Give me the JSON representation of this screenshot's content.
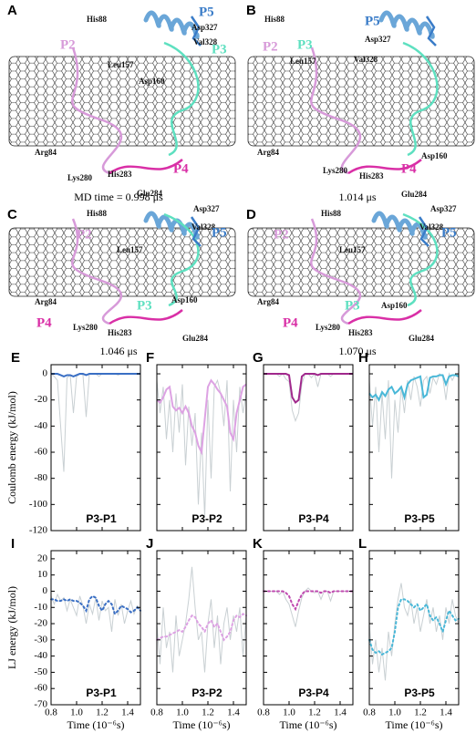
{
  "panels": [
    {
      "letter": "A",
      "labels": [
        "His88",
        "P2",
        "Leu157",
        "P5",
        "Asp327",
        "Val328",
        "P3",
        "Asp160",
        "Arg84",
        "Lys280",
        "His283",
        "P4",
        "Glu284"
      ],
      "caption": "MD time = 0.998 μs"
    },
    {
      "letter": "B",
      "labels": [
        "His88",
        "P5",
        "Asp327",
        "P2",
        "P3",
        "Leu157",
        "Val328",
        "Arg84",
        "Asp160",
        "P4",
        "Lys280",
        "His283",
        "Glu284"
      ],
      "caption": "1.014 μs"
    },
    {
      "letter": "C",
      "labels": [
        "His88",
        "Asp327",
        "P2",
        "Val328",
        "P5",
        "Leu157",
        "Arg84",
        "Asp160",
        "P3",
        "P4",
        "Lys280",
        "His283",
        "Glu284"
      ],
      "caption": "1.046 μs"
    },
    {
      "letter": "D",
      "labels": [
        "His88",
        "Asp327",
        "P2",
        "Val328",
        "P5",
        "Leu157",
        "Arg84",
        "P3",
        "Asp160",
        "P4",
        "Lys280",
        "His283",
        "Glu284"
      ],
      "caption": "1.070 μs"
    }
  ],
  "chart_data": [
    {
      "type": "line",
      "panel": "E",
      "annotation": "P3-P1",
      "ylabel": "Coulomb energy (kJ/mol)",
      "x": [
        0.8,
        0.825,
        0.85,
        0.875,
        0.9,
        0.925,
        0.95,
        0.975,
        1,
        1.025,
        1.05,
        1.075,
        1.1,
        1.125,
        1.15,
        1.175,
        1.2,
        1.225,
        1.25,
        1.275,
        1.3,
        1.325,
        1.35,
        1.375,
        1.4,
        1.425,
        1.45,
        1.475,
        1.5
      ],
      "xlim": [
        0.8,
        1.5
      ],
      "xticks": [
        0.8,
        {
          "value": 1,
          "label": "1.0"
        },
        1.2,
        1.4
      ],
      "xtick_labels": false,
      "ylim": [
        -120,
        7
      ],
      "yticks": [
        0,
        -20,
        -40,
        -60,
        -80,
        -100,
        -120
      ],
      "ytick_labels": true,
      "series": [
        {
          "color": "#c9d0d3",
          "values": [
            0,
            -2,
            -5,
            -40,
            -75,
            -3,
            -1,
            -30,
            -2,
            0,
            -1,
            -33,
            0,
            0,
            0,
            -2,
            0,
            0,
            0,
            0,
            0,
            -1,
            0,
            0,
            0,
            0,
            0,
            0,
            0
          ]
        },
        {
          "color": "#3a6fc4",
          "line_style": "solid",
          "values": [
            0,
            0,
            0,
            -1,
            -2,
            -1,
            -1,
            -2,
            -1,
            0,
            0,
            -1,
            0,
            0,
            0,
            0,
            0,
            0,
            0,
            0,
            0,
            0,
            0,
            0,
            0,
            0,
            0,
            0,
            0
          ]
        }
      ]
    },
    {
      "type": "line",
      "panel": "F",
      "annotation": "P3-P2",
      "x": [
        0.8,
        0.825,
        0.85,
        0.875,
        0.9,
        0.925,
        0.95,
        0.975,
        1,
        1.025,
        1.05,
        1.075,
        1.1,
        1.125,
        1.15,
        1.175,
        1.2,
        1.225,
        1.25,
        1.275,
        1.3,
        1.325,
        1.35,
        1.375,
        1.4,
        1.425,
        1.45,
        1.475,
        1.5
      ],
      "xlim": [
        0.8,
        1.5
      ],
      "xticks": [
        0.8,
        {
          "value": 1,
          "label": "1.0"
        },
        1.2,
        1.4
      ],
      "xtick_labels": false,
      "ylim": [
        -120,
        7
      ],
      "yticks": [
        0,
        -20,
        -40,
        -60,
        -80,
        -100,
        -120
      ],
      "ytick_labels": false,
      "series": [
        {
          "color": "#c9d0d3",
          "values": [
            -5,
            -30,
            -10,
            -50,
            -20,
            -60,
            -15,
            -45,
            -8,
            -70,
            -25,
            -55,
            -30,
            -100,
            -45,
            -110,
            -20,
            -80,
            -10,
            -5,
            -15,
            -40,
            -5,
            -90,
            -20,
            -60,
            -10,
            -30,
            -15
          ]
        },
        {
          "color": "#dda2e3",
          "line_style": "solid",
          "values": [
            -20,
            -22,
            -18,
            -12,
            -10,
            -25,
            -28,
            -26,
            -30,
            -25,
            -30,
            -40,
            -45,
            -55,
            -60,
            -35,
            -10,
            -5,
            -8,
            -12,
            -15,
            -20,
            -25,
            -45,
            -50,
            -30,
            -20,
            -10,
            -8
          ]
        }
      ]
    },
    {
      "type": "line",
      "panel": "G",
      "annotation": "P3-P4",
      "x": [
        0.8,
        0.825,
        0.85,
        0.875,
        0.9,
        0.925,
        0.95,
        0.975,
        1,
        1.025,
        1.05,
        1.075,
        1.1,
        1.125,
        1.15,
        1.175,
        1.2,
        1.225,
        1.25,
        1.275,
        1.3,
        1.325,
        1.35,
        1.375,
        1.4,
        1.425,
        1.45,
        1.475,
        1.5
      ],
      "xlim": [
        0.8,
        1.5
      ],
      "xticks": [
        0.8,
        {
          "value": 1,
          "label": "1.0"
        },
        1.2,
        1.4
      ],
      "xtick_labels": false,
      "ylim": [
        -120,
        7
      ],
      "yticks": [
        0,
        -20,
        -40,
        -60,
        -80,
        -100,
        -120
      ],
      "ytick_labels": false,
      "series": [
        {
          "color": "#c9d0d3",
          "values": [
            0,
            0,
            0,
            0,
            0,
            -2,
            0,
            -4,
            -6,
            -28,
            -36,
            -30,
            -8,
            0,
            0,
            -3,
            0,
            -10,
            0,
            0,
            0,
            -2,
            0,
            0,
            0,
            0,
            0,
            0,
            0
          ]
        },
        {
          "color": "#a0288c",
          "line_style": "solid",
          "values": [
            0,
            0,
            0,
            0,
            0,
            0,
            0,
            0,
            -1,
            -18,
            -22,
            -20,
            -2,
            0,
            0,
            0,
            0,
            -1,
            0,
            0,
            0,
            0,
            0,
            0,
            0,
            0,
            0,
            0,
            0
          ]
        }
      ]
    },
    {
      "type": "line",
      "panel": "H",
      "annotation": "P3-P5",
      "x": [
        0.8,
        0.825,
        0.85,
        0.875,
        0.9,
        0.925,
        0.95,
        0.975,
        1,
        1.025,
        1.05,
        1.075,
        1.1,
        1.125,
        1.15,
        1.175,
        1.2,
        1.225,
        1.25,
        1.275,
        1.3,
        1.325,
        1.35,
        1.375,
        1.4,
        1.425,
        1.45,
        1.475,
        1.5
      ],
      "xlim": [
        0.8,
        1.5
      ],
      "xticks": [
        0.8,
        {
          "value": 1,
          "label": "1.0"
        },
        1.2,
        1.4
      ],
      "xtick_labels": false,
      "ylim": [
        -120,
        7
      ],
      "yticks": [
        0,
        -20,
        -40,
        -60,
        -80,
        -100,
        -120
      ],
      "ytick_labels": false,
      "series": [
        {
          "color": "#c9d0d3",
          "values": [
            -5,
            -40,
            -10,
            -60,
            -15,
            -50,
            -5,
            -80,
            -20,
            -45,
            -10,
            -30,
            -5,
            -20,
            -2,
            -10,
            -25,
            -5,
            -2,
            -15,
            -3,
            -8,
            0,
            -2,
            -20,
            0,
            -5,
            0,
            -1
          ]
        },
        {
          "color": "#4ab8d8",
          "line_style": "solid",
          "values": [
            -15,
            -18,
            -16,
            -20,
            -14,
            -17,
            -12,
            -10,
            -15,
            -13,
            -10,
            -18,
            -8,
            -5,
            -4,
            -3,
            -2,
            -18,
            -16,
            -3,
            -2,
            -2,
            -1,
            -1,
            -8,
            -2,
            -1,
            -1,
            -2
          ]
        }
      ]
    },
    {
      "type": "line",
      "panel": "I",
      "annotation": "P3-P1",
      "ylabel": "LJ energy (kJ/mol)",
      "xlabel": "Time (10⁻⁶s)",
      "x": [
        0.8,
        0.825,
        0.85,
        0.875,
        0.9,
        0.925,
        0.95,
        0.975,
        1,
        1.025,
        1.05,
        1.075,
        1.1,
        1.125,
        1.15,
        1.175,
        1.2,
        1.225,
        1.25,
        1.275,
        1.3,
        1.325,
        1.35,
        1.375,
        1.4,
        1.425,
        1.45,
        1.475,
        1.5
      ],
      "xlim": [
        0.8,
        1.5
      ],
      "xticks": [
        0.8,
        {
          "value": 1,
          "label": "1.0"
        },
        1.2,
        1.4
      ],
      "xtick_labels": true,
      "ylim": [
        -70,
        25
      ],
      "yticks": [
        20,
        10,
        0,
        -10,
        -20,
        -30,
        -40,
        -50,
        -60,
        -70
      ],
      "ytick_labels": true,
      "series": [
        {
          "color": "#c9d0d3",
          "values": [
            -3,
            -8,
            -2,
            -6,
            -4,
            -12,
            -5,
            -10,
            -15,
            -3,
            -9,
            -20,
            -8,
            -14,
            -4,
            -18,
            -6,
            -12,
            -10,
            -25,
            -5,
            -15,
            -8,
            -20,
            -12,
            -6,
            -14,
            -9,
            -11
          ]
        },
        {
          "color": "#3a6fc4",
          "line_style": "dotted",
          "values": [
            -5,
            -5,
            -6,
            -6,
            -5,
            -6,
            -5,
            -6,
            -6,
            -7,
            -9,
            -12,
            -5,
            -3,
            -4,
            -9,
            -12,
            -8,
            -6,
            -8,
            -14,
            -12,
            -9,
            -10,
            -11,
            -13,
            -12,
            -10,
            -12
          ]
        }
      ]
    },
    {
      "type": "line",
      "panel": "J",
      "annotation": "P3-P2",
      "xlabel": "Time (10⁻⁶s)",
      "x": [
        0.8,
        0.825,
        0.85,
        0.875,
        0.9,
        0.925,
        0.95,
        0.975,
        1,
        1.025,
        1.05,
        1.075,
        1.1,
        1.125,
        1.15,
        1.175,
        1.2,
        1.225,
        1.25,
        1.275,
        1.3,
        1.325,
        1.35,
        1.375,
        1.4,
        1.425,
        1.45,
        1.475,
        1.5
      ],
      "xlim": [
        0.8,
        1.5
      ],
      "xticks": [
        0.8,
        {
          "value": 1,
          "label": "1.0"
        },
        1.2,
        1.4
      ],
      "xtick_labels": true,
      "ylim": [
        -70,
        25
      ],
      "yticks": [
        20,
        10,
        0,
        -10,
        -20,
        -30,
        -40,
        -50,
        -60,
        -70
      ],
      "ytick_labels": false,
      "series": [
        {
          "color": "#c9d0d3",
          "values": [
            -20,
            -45,
            -10,
            -35,
            -25,
            -50,
            -15,
            -40,
            -30,
            -20,
            -5,
            15,
            -10,
            -30,
            -25,
            -50,
            -20,
            -5,
            -35,
            -15,
            -45,
            -20,
            -10,
            -30,
            -15,
            -25,
            -10,
            -40,
            -15
          ]
        },
        {
          "color": "#dda2e3",
          "line_style": "dotted",
          "values": [
            -30,
            -29,
            -28,
            -28,
            -27,
            -26,
            -25,
            -24,
            -25,
            -22,
            -18,
            -15,
            -16,
            -20,
            -22,
            -25,
            -20,
            -18,
            -22,
            -20,
            -25,
            -30,
            -28,
            -25,
            -18,
            -15,
            -16,
            -14,
            -15
          ]
        }
      ]
    },
    {
      "type": "line",
      "panel": "K",
      "annotation": "P3-P4",
      "xlabel": "Time (10⁻⁶s)",
      "x": [
        0.8,
        0.825,
        0.85,
        0.875,
        0.9,
        0.925,
        0.95,
        0.975,
        1,
        1.025,
        1.05,
        1.075,
        1.1,
        1.125,
        1.15,
        1.175,
        1.2,
        1.225,
        1.25,
        1.275,
        1.3,
        1.325,
        1.35,
        1.375,
        1.4,
        1.425,
        1.45,
        1.475,
        1.5
      ],
      "xlim": [
        0.8,
        1.5
      ],
      "xticks": [
        0.8,
        {
          "value": 1,
          "label": "1.0"
        },
        1.2,
        1.4
      ],
      "xtick_labels": true,
      "ylim": [
        -70,
        25
      ],
      "yticks": [
        20,
        10,
        0,
        -10,
        -20,
        -30,
        -40,
        -50,
        -60,
        -70
      ],
      "ytick_labels": false,
      "series": [
        {
          "color": "#c9d0d3",
          "values": [
            0,
            0,
            0,
            0,
            0,
            -2,
            0,
            -5,
            -8,
            -15,
            -22,
            -12,
            -4,
            0,
            2,
            0,
            -1,
            0,
            -5,
            0,
            0,
            -6,
            0,
            0,
            0,
            0,
            0,
            0,
            0
          ]
        },
        {
          "color": "#c04ab0",
          "line_style": "dotted",
          "values": [
            0,
            0,
            0,
            0,
            0,
            0,
            0,
            -1,
            -3,
            -8,
            -11,
            -6,
            -2,
            0,
            0,
            0,
            0,
            0,
            -1,
            0,
            0,
            -1,
            0,
            0,
            0,
            0,
            0,
            0,
            0
          ]
        }
      ]
    },
    {
      "type": "line",
      "panel": "L",
      "annotation": "P3-P5",
      "xlabel": "Time (10⁻⁶s)",
      "x": [
        0.8,
        0.825,
        0.85,
        0.875,
        0.9,
        0.925,
        0.95,
        0.975,
        1,
        1.025,
        1.05,
        1.075,
        1.1,
        1.125,
        1.15,
        1.175,
        1.2,
        1.225,
        1.25,
        1.275,
        1.3,
        1.325,
        1.35,
        1.375,
        1.4,
        1.425,
        1.45,
        1.475,
        1.5
      ],
      "xlim": [
        0.8,
        1.5
      ],
      "xticks": [
        0.8,
        {
          "value": 1,
          "label": "1.0"
        },
        1.2,
        1.4
      ],
      "xtick_labels": true,
      "ylim": [
        -70,
        25
      ],
      "yticks": [
        20,
        10,
        0,
        -10,
        -20,
        -30,
        -40,
        -50,
        -60,
        -70
      ],
      "ytick_labels": false,
      "series": [
        {
          "color": "#c9d0d3",
          "values": [
            -20,
            -45,
            -30,
            -50,
            -35,
            -55,
            -25,
            -40,
            -20,
            -5,
            5,
            -10,
            -15,
            -5,
            -20,
            -10,
            -25,
            -15,
            -5,
            -20,
            -10,
            -25,
            -15,
            -30,
            -10,
            -20,
            -5,
            -15,
            -20
          ]
        },
        {
          "color": "#4ab8d8",
          "line_style": "dotted",
          "values": [
            -30,
            -36,
            -38,
            -37,
            -39,
            -38,
            -37,
            -35,
            -25,
            -10,
            -5,
            -5,
            -6,
            -8,
            -10,
            -8,
            -12,
            -10,
            -8,
            -15,
            -18,
            -16,
            -20,
            -25,
            -18,
            -12,
            -15,
            -18,
            -17
          ]
        }
      ]
    }
  ]
}
